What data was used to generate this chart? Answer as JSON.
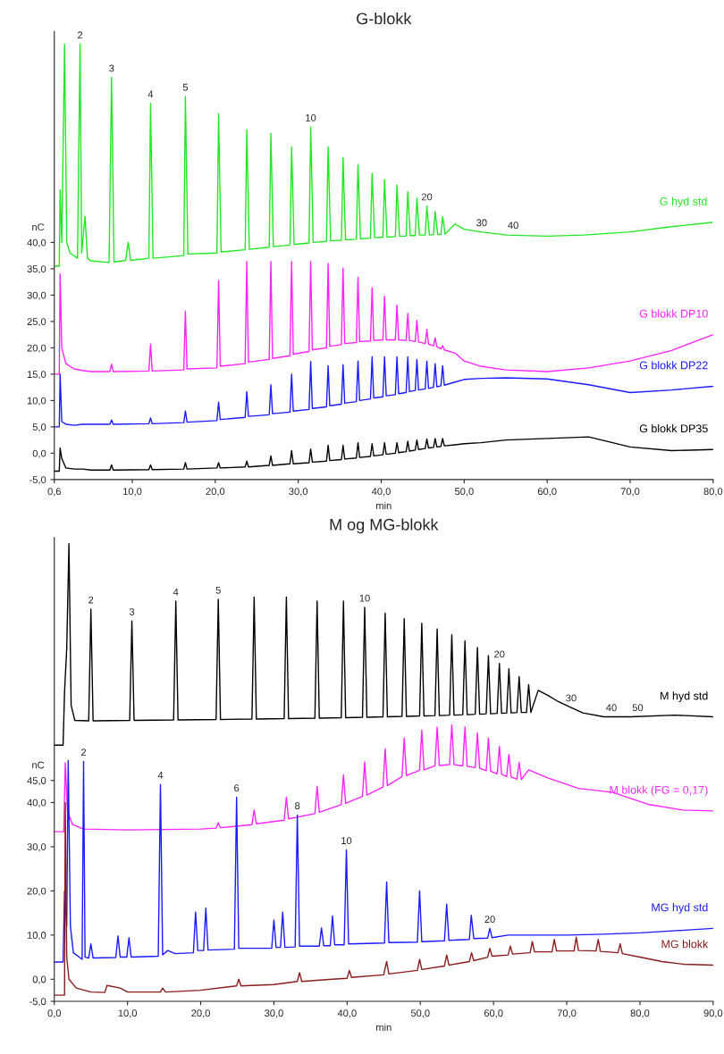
{
  "chart_data": [
    {
      "type": "line",
      "title": "G-blokk",
      "xlabel": "min",
      "ylabel": "nC",
      "xlim": [
        0.6,
        80
      ],
      "ylim": [
        -5,
        80
      ],
      "xticks": [
        {
          "value": 0.6,
          "label": "0,6"
        },
        {
          "value": 10,
          "label": "10,0"
        },
        {
          "value": 20,
          "label": "20,0"
        },
        {
          "value": 30,
          "label": "30,0"
        },
        {
          "value": 40,
          "label": "40,0"
        },
        {
          "value": 50,
          "label": "50,0"
        },
        {
          "value": 60,
          "label": "60,0"
        },
        {
          "value": 70,
          "label": "70,0"
        },
        {
          "value": 80,
          "label": "80,0"
        }
      ],
      "yticks": [
        {
          "value": -5,
          "label": "-5,0"
        },
        {
          "value": 0,
          "label": "0,0"
        },
        {
          "value": 5,
          "label": "5,0"
        },
        {
          "value": 10,
          "label": "10,0"
        },
        {
          "value": 15,
          "label": "15,0"
        },
        {
          "value": 20,
          "label": "20,0"
        },
        {
          "value": 25,
          "label": "25,0"
        },
        {
          "value": 30,
          "label": "30,0"
        },
        {
          "value": 35,
          "label": "35,0"
        },
        {
          "value": 40,
          "label": "40,0"
        }
      ],
      "series": [
        {
          "name": "G hyd std",
          "color": "#22e822",
          "x": [
            0.6,
            1.2,
            1.3,
            1.5,
            1.84,
            2.1,
            2.5,
            3.4,
            3.7,
            3.9,
            4.3,
            4.6,
            5.0,
            7.2,
            7.5,
            7.8,
            9.2,
            9.5,
            9.8,
            12.0,
            12.2,
            12.5,
            16.2,
            16.4,
            16.7,
            20.2,
            20.4,
            20.7,
            23.6,
            23.8,
            24.1,
            26.5,
            26.7,
            27.0,
            29.0,
            29.2,
            29.5,
            31.3,
            31.5,
            31.8,
            33.4,
            33.6,
            33.9,
            35.2,
            35.4,
            35.7,
            37.0,
            37.2,
            37.5,
            38.7,
            38.9,
            39.2,
            40.2,
            40.4,
            40.7,
            41.7,
            41.9,
            42.2,
            43.0,
            43.2,
            43.5,
            44.1,
            44.3,
            44.6,
            45.3,
            45.5,
            45.8,
            46.3,
            46.5,
            46.8,
            47.2,
            47.4,
            47.7,
            48.9,
            50,
            52,
            55.1,
            60,
            64.4,
            70,
            75,
            79.9
          ],
          "values": [
            35.5,
            35.5,
            50,
            40,
            77.6,
            40,
            38,
            37,
            77.6,
            38,
            45,
            37,
            36.5,
            36.2,
            71.3,
            36.3,
            36.6,
            40,
            36.6,
            37,
            66.4,
            37,
            37.5,
            67.7,
            37.8,
            38,
            64.4,
            38.2,
            38.6,
            61.4,
            38.7,
            39.1,
            60.7,
            39.2,
            39.5,
            58.1,
            39.6,
            39.9,
            61.9,
            40,
            40.2,
            58.1,
            40.3,
            40.4,
            56.1,
            40.5,
            40.6,
            54.8,
            40.7,
            40.8,
            53.1,
            40.9,
            41,
            51.9,
            41,
            41.1,
            50.9,
            41.2,
            41.2,
            49.6,
            41.3,
            41.3,
            48.4,
            41.4,
            41.4,
            46.9,
            41.4,
            41.5,
            45.9,
            41.5,
            41.5,
            44.9,
            41.6,
            43.5,
            42.5,
            42,
            41.4,
            41.2,
            41.4,
            42,
            43,
            43.8
          ]
        },
        {
          "name": "G blokk DP10",
          "color": "#ff22ff",
          "x": [
            0.6,
            1.2,
            1.3,
            1.5,
            2.0,
            3.0,
            4.0,
            5.0,
            7.3,
            7.5,
            7.7,
            12.0,
            12.2,
            12.4,
            16.2,
            16.4,
            16.6,
            20.2,
            20.4,
            20.6,
            23.6,
            23.8,
            24.0,
            26.5,
            26.7,
            26.9,
            29.0,
            29.2,
            29.4,
            31.3,
            31.5,
            31.7,
            33.4,
            33.6,
            33.8,
            35.2,
            35.4,
            35.6,
            37.0,
            37.2,
            37.4,
            38.7,
            38.9,
            39.1,
            40.2,
            40.4,
            40.6,
            41.7,
            41.9,
            42.1,
            43.0,
            43.2,
            43.4,
            44.1,
            44.3,
            44.5,
            45.3,
            45.5,
            45.7,
            46.3,
            46.5,
            46.7,
            47.2,
            47.4,
            47.6,
            48.9,
            50,
            52,
            55,
            60,
            65,
            70,
            75,
            80
          ],
          "values": [
            15,
            15,
            34,
            20,
            17,
            16,
            15.7,
            15.5,
            15.5,
            16.9,
            15.5,
            15.6,
            20.7,
            15.6,
            15.8,
            27,
            16,
            16.2,
            32.8,
            16.5,
            17,
            36.4,
            17.3,
            17.8,
            36.4,
            18,
            18.5,
            36.4,
            18.8,
            19.3,
            36.4,
            19.6,
            20,
            36,
            20.3,
            20.6,
            35.1,
            20.8,
            21,
            33.4,
            21.2,
            21.3,
            31.4,
            21.4,
            21.5,
            29.8,
            21.5,
            21.5,
            28.1,
            21.5,
            21.4,
            26.5,
            21.4,
            21.2,
            25.2,
            21.1,
            20.8,
            23.5,
            20.7,
            20.4,
            21.9,
            20.2,
            19.8,
            20.4,
            19.6,
            19,
            17.5,
            16.5,
            15.8,
            15.5,
            16.2,
            17.5,
            19.5,
            22.5
          ]
        },
        {
          "name": "G blokk DP22",
          "color": "#1a1aff",
          "x": [
            0.6,
            1.2,
            1.3,
            1.5,
            2.0,
            3.0,
            4.0,
            5.0,
            7.3,
            7.5,
            7.7,
            12.0,
            12.2,
            12.4,
            16.2,
            16.4,
            16.6,
            20.2,
            20.4,
            20.6,
            23.6,
            23.8,
            24.0,
            26.5,
            26.7,
            26.9,
            29.0,
            29.2,
            29.4,
            31.3,
            31.5,
            31.7,
            33.4,
            33.6,
            33.8,
            35.2,
            35.4,
            35.6,
            37.0,
            37.2,
            37.4,
            38.7,
            38.9,
            39.1,
            40.2,
            40.4,
            40.6,
            41.7,
            41.9,
            42.1,
            43.0,
            43.2,
            43.4,
            44.1,
            44.3,
            44.5,
            45.3,
            45.5,
            45.7,
            46.3,
            46.5,
            46.7,
            47.2,
            47.4,
            47.6,
            48.9,
            50,
            52,
            55,
            60,
            65,
            70,
            75,
            80
          ],
          "values": [
            5,
            5,
            15,
            6,
            5.5,
            5.3,
            5.5,
            5.5,
            5.5,
            6.3,
            5.5,
            5.6,
            6.7,
            5.6,
            5.8,
            8,
            5.9,
            6.2,
            9.7,
            6.4,
            6.8,
            11.7,
            7,
            7.3,
            13,
            7.5,
            7.8,
            15,
            8,
            8.3,
            17.4,
            8.5,
            8.8,
            16.6,
            9,
            9.3,
            16.8,
            9.5,
            9.8,
            17.5,
            10,
            10.3,
            18.3,
            10.5,
            10.7,
            18.3,
            10.9,
            11.1,
            18.3,
            11.3,
            11.5,
            18.3,
            11.7,
            11.9,
            17.8,
            12,
            12.2,
            17.5,
            12.3,
            12.5,
            17,
            12.6,
            12.8,
            16.6,
            12.9,
            13.5,
            14,
            14.2,
            14.3,
            14.1,
            13,
            11.5,
            12,
            12.7
          ]
        },
        {
          "name": "G blokk DP35",
          "color": "#000000",
          "x": [
            0.6,
            1.2,
            1.3,
            1.5,
            2.0,
            3.0,
            4.0,
            5.0,
            7.3,
            7.5,
            7.7,
            12.0,
            12.2,
            12.4,
            16.2,
            16.4,
            16.6,
            20.2,
            20.4,
            20.6,
            23.6,
            23.8,
            24.0,
            26.5,
            26.7,
            26.9,
            29.0,
            29.2,
            29.4,
            31.3,
            31.5,
            31.7,
            33.4,
            33.6,
            33.8,
            35.2,
            35.4,
            35.6,
            37.0,
            37.2,
            37.4,
            38.7,
            38.9,
            39.1,
            40.2,
            40.4,
            40.6,
            41.7,
            41.9,
            42.1,
            43.0,
            43.2,
            43.4,
            44.1,
            44.3,
            44.5,
            45.3,
            45.5,
            45.7,
            46.3,
            46.5,
            46.7,
            47.2,
            47.4,
            47.6,
            48.9,
            50,
            52,
            55,
            60,
            65,
            70,
            75,
            80
          ],
          "values": [
            -3.4,
            -3.4,
            1,
            -1,
            -2.8,
            -3,
            -3,
            -3.2,
            -3.2,
            -2.2,
            -3.2,
            -3.1,
            -2.2,
            -3.1,
            -3,
            -1.8,
            -3,
            -2.8,
            -1.8,
            -2.8,
            -2.6,
            -1.5,
            -2.6,
            -2.3,
            -0.5,
            -2.3,
            -2,
            0.5,
            -2,
            -1.8,
            0.8,
            -1.7,
            -1.5,
            1.5,
            -1.4,
            -1.2,
            1.5,
            -1.1,
            -0.9,
            2,
            -0.8,
            -0.6,
            1.8,
            -0.5,
            -0.3,
            2,
            -0.2,
            0,
            2,
            0.1,
            0.3,
            2.3,
            0.4,
            0.6,
            2.5,
            0.7,
            0.9,
            2.7,
            1,
            1.1,
            2.8,
            1.2,
            1.3,
            2.8,
            1.4,
            1.6,
            1.8,
            2,
            2.5,
            2.8,
            3.1,
            1.2,
            0.5,
            0.7
          ]
        }
      ],
      "annotations": [
        {
          "text": "2",
          "x": 3.7,
          "y": 77.6
        },
        {
          "text": "3",
          "x": 7.5,
          "y": 71.3
        },
        {
          "text": "4",
          "x": 12.2,
          "y": 66.4
        },
        {
          "text": "5",
          "x": 16.4,
          "y": 67.7
        },
        {
          "text": "10",
          "x": 31.5,
          "y": 61.9
        },
        {
          "text": "20",
          "x": 45.5,
          "y": 46.9
        },
        {
          "text": "30",
          "x": 52.1,
          "y": 42
        },
        {
          "text": "40",
          "x": 55.9,
          "y": 41.5
        }
      ]
    },
    {
      "type": "line",
      "title": "M og MG-blokk",
      "xlabel": "min",
      "ylabel": "nC",
      "xlim": [
        0,
        90
      ],
      "ylim": [
        -5,
        100
      ],
      "xticks": [
        {
          "value": 0,
          "label": "0,0"
        },
        {
          "value": 10,
          "label": "10,0"
        },
        {
          "value": 20,
          "label": "20,0"
        },
        {
          "value": 30,
          "label": "30,0"
        },
        {
          "value": 40,
          "label": "40,0"
        },
        {
          "value": 50,
          "label": "50,0"
        },
        {
          "value": 60,
          "label": "60,0"
        },
        {
          "value": 70,
          "label": "70,0"
        },
        {
          "value": 80,
          "label": "80,0"
        },
        {
          "value": 90,
          "label": "90,0"
        }
      ],
      "yticks": [
        {
          "value": -5,
          "label": "-5,0"
        },
        {
          "value": 0,
          "label": "0,0"
        },
        {
          "value": 10,
          "label": "10,0"
        },
        {
          "value": 20,
          "label": "20,0"
        },
        {
          "value": 30,
          "label": "30,0"
        },
        {
          "value": 40,
          "label": "40,0"
        },
        {
          "value": 45,
          "label": "45,0"
        }
      ],
      "series": [
        {
          "name": "M hyd std",
          "color": "#000000",
          "x": [
            0,
            1.2,
            1.4,
            1.7,
            2.0,
            2.3,
            2.8,
            4.7,
            5.0,
            5.3,
            10.3,
            10.6,
            10.9,
            16.3,
            16.6,
            16.9,
            22.1,
            22.4,
            22.7,
            27.0,
            27.3,
            27.6,
            31.4,
            31.7,
            32.0,
            35.6,
            35.9,
            36.2,
            39.2,
            39.5,
            39.8,
            42.1,
            42.4,
            42.7,
            44.9,
            45.2,
            45.5,
            47.5,
            47.8,
            48.1,
            49.9,
            50.2,
            50.5,
            52.0,
            52.3,
            52.6,
            54.0,
            54.3,
            54.6,
            55.8,
            56.1,
            56.4,
            57.5,
            57.8,
            58.1,
            59.0,
            59.3,
            59.6,
            60.5,
            60.8,
            61.1,
            61.8,
            62.1,
            62.4,
            63.2,
            63.5,
            63.8,
            64.5,
            64.8,
            65.1,
            66.1,
            67.4,
            68.7,
            70.2,
            72.2,
            75.1,
            78.7,
            84.7,
            90
          ],
          "values": [
            53,
            53,
            65,
            75,
            98.6,
            62,
            58.6,
            58.5,
            83.8,
            58.5,
            58.6,
            81.1,
            58.6,
            58.7,
            85.6,
            58.7,
            58.8,
            86,
            58.8,
            58.9,
            86.5,
            58.9,
            59,
            86.5,
            59,
            59.1,
            85.6,
            59.1,
            59.2,
            85.6,
            59.2,
            59.3,
            84.2,
            59.3,
            59.4,
            82.9,
            59.4,
            59.5,
            81.6,
            59.5,
            59.6,
            80.6,
            59.6,
            59.7,
            79.3,
            59.7,
            59.8,
            78,
            59.8,
            59.9,
            76.6,
            59.9,
            60,
            75.1,
            60,
            60.1,
            73.3,
            60.1,
            60.2,
            71.5,
            60.2,
            60.3,
            70.3,
            60.3,
            60.4,
            68.5,
            60.4,
            60.4,
            66.7,
            60.4,
            65.4,
            64.3,
            63,
            61.8,
            60.3,
            59.4,
            59.4,
            59.8,
            59.4
          ]
        },
        {
          "name": "M blokk (FG = 0,17)",
          "color": "#ff22ff",
          "x": [
            0,
            1.3,
            1.5,
            1.8,
            2.5,
            4,
            10,
            20,
            22.1,
            22.4,
            22.7,
            27.0,
            27.3,
            27.6,
            31.4,
            31.7,
            32.0,
            35.6,
            35.9,
            36.2,
            39.2,
            39.5,
            39.8,
            42.1,
            42.4,
            42.7,
            44.9,
            45.2,
            45.5,
            47.5,
            47.8,
            48.1,
            49.9,
            50.2,
            50.5,
            52.0,
            52.3,
            52.6,
            54.0,
            54.3,
            54.6,
            55.8,
            56.1,
            56.4,
            57.5,
            57.8,
            58.1,
            59.0,
            59.3,
            59.6,
            60.5,
            60.8,
            61.1,
            61.8,
            62.1,
            62.4,
            63.2,
            63.5,
            63.8,
            64.8,
            67.4,
            71.6,
            76.3,
            81.1,
            85.9,
            90
          ],
          "values": [
            33.4,
            33.4,
            49,
            38,
            35,
            34,
            33.8,
            34,
            34.2,
            35.4,
            34.3,
            35,
            38.3,
            35.2,
            36,
            41.2,
            36.3,
            37.5,
            43.7,
            37.8,
            39.5,
            46.3,
            39.8,
            41.4,
            49.2,
            41.7,
            43.5,
            52.2,
            43.8,
            45.9,
            54.6,
            46.1,
            47.3,
            56.4,
            47.4,
            48.3,
            57.1,
            48.4,
            48.6,
            57.6,
            48.6,
            48.3,
            57.1,
            48.2,
            47.9,
            55.8,
            47.8,
            47.2,
            54.6,
            47.1,
            46.5,
            52.7,
            46.4,
            45.9,
            50.9,
            45.8,
            45.3,
            49.1,
            45.2,
            47.4,
            45.6,
            43.2,
            42.3,
            39.6,
            38.3,
            38.1
          ]
        },
        {
          "name": "MG hyd std",
          "color": "#1a1aff",
          "x": [
            0,
            1.2,
            1.4,
            1.7,
            1.9,
            2.2,
            2.6,
            3.8,
            4.0,
            4.2,
            4.7,
            5.0,
            5.3,
            8.4,
            8.7,
            9.0,
            9.9,
            10.2,
            10.5,
            14.2,
            14.5,
            14.8,
            15.5,
            16.5,
            19.0,
            19.3,
            19.6,
            20.4,
            20.7,
            21.0,
            24.6,
            24.9,
            25.2,
            29.7,
            30.0,
            30.3,
            30.9,
            31.2,
            31.5,
            32.9,
            33.2,
            33.5,
            36.2,
            36.5,
            36.8,
            37.7,
            38.0,
            38.3,
            39.6,
            39.9,
            40.2,
            45.1,
            45.4,
            45.7,
            49.6,
            49.9,
            50.2,
            53.3,
            53.6,
            53.9,
            56.7,
            56.96,
            57.3,
            59.2,
            59.5,
            59.8,
            62,
            65,
            70,
            75,
            80,
            85,
            90
          ],
          "values": [
            3.9,
            3.9,
            20,
            12,
            49.5,
            12,
            6,
            4.5,
            49.3,
            5,
            4.8,
            8,
            4.8,
            4.9,
            9.8,
            5,
            5,
            9.4,
            5,
            5.2,
            44.1,
            5.5,
            6.5,
            5.8,
            6,
            15.2,
            6.5,
            6.5,
            16.1,
            6.6,
            6.8,
            41.2,
            7,
            7,
            13.4,
            7.2,
            7.2,
            15.2,
            7.2,
            7.3,
            37.2,
            7.5,
            7.5,
            11.6,
            7.6,
            7.6,
            14.3,
            7.8,
            7.8,
            29.3,
            8,
            8.2,
            22,
            8.3,
            8.4,
            20,
            8.5,
            8.7,
            17,
            8.8,
            9,
            14.5,
            9.2,
            9.3,
            11.5,
            9.4,
            10,
            10,
            10,
            10.2,
            10.5,
            11,
            11.5
          ]
        },
        {
          "name": "MG blokk",
          "color": "#8b1a1a",
          "x": [
            0,
            1.4,
            1.5,
            1.7,
            2.0,
            3.0,
            5.0,
            6.9,
            7.2,
            9.0,
            10,
            14.5,
            14.8,
            15.2,
            20,
            24.9,
            25.2,
            25.5,
            30,
            33.2,
            33.5,
            33.8,
            38,
            40,
            40.3,
            40.6,
            45,
            45.4,
            45.7,
            49.6,
            49.9,
            50.2,
            53.3,
            53.6,
            53.9,
            56.7,
            57.0,
            57.3,
            59.2,
            59.5,
            59.8,
            62.0,
            62.3,
            62.6,
            65,
            65.3,
            65.6,
            68,
            68.3,
            68.6,
            71,
            71.3,
            71.6,
            74,
            74.3,
            74.6,
            77,
            77.3,
            77.6,
            80,
            83,
            86,
            90
          ],
          "values": [
            -3.6,
            -3.6,
            40,
            5,
            0,
            -2,
            -2.9,
            -3,
            -1.4,
            -2,
            -2.9,
            -2.9,
            -2,
            -2.9,
            -2.5,
            -1.5,
            0,
            -1.5,
            -1.2,
            -0.5,
            1.5,
            -0.5,
            0,
            0.2,
            2,
            0.4,
            1,
            4,
            1.2,
            2,
            4.5,
            2.2,
            3,
            5.5,
            3.2,
            4,
            6,
            4.2,
            5,
            7,
            5.2,
            5.5,
            7.5,
            5.7,
            6,
            8.5,
            6.2,
            6.2,
            9,
            6.4,
            6.4,
            9.5,
            6.5,
            6.4,
            9,
            6.3,
            6,
            8,
            5.8,
            5,
            4,
            3.4,
            3.2
          ]
        }
      ],
      "annotations": [
        {
          "text": "2",
          "x": 5,
          "y": 83.8
        },
        {
          "text": "3",
          "x": 10.6,
          "y": 81.1
        },
        {
          "text": "4",
          "x": 16.6,
          "y": 85.6
        },
        {
          "text": "5",
          "x": 22.4,
          "y": 86
        },
        {
          "text": "10",
          "x": 42.4,
          "y": 84.2
        },
        {
          "text": "20",
          "x": 60.8,
          "y": 71.5
        },
        {
          "text": "30",
          "x": 70.6,
          "y": 61.6
        },
        {
          "text": "40",
          "x": 76.1,
          "y": 59.4
        },
        {
          "text": "50",
          "x": 79.7,
          "y": 59.4
        },
        {
          "text": "2",
          "x": 4,
          "y": 49.3
        },
        {
          "text": "4",
          "x": 14.5,
          "y": 44.1
        },
        {
          "text": "6",
          "x": 24.9,
          "y": 41.2
        },
        {
          "text": "8",
          "x": 33.2,
          "y": 37.2
        },
        {
          "text": "10",
          "x": 39.9,
          "y": 29.3
        },
        {
          "text": "20",
          "x": 59.5,
          "y": 11.5
        }
      ]
    }
  ]
}
